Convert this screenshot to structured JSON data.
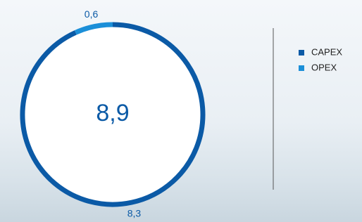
{
  "chart_data": {
    "type": "pie",
    "categories": [
      "CAPEX",
      "OPEX"
    ],
    "values": [
      8.3,
      0.6
    ],
    "value_labels": [
      "8,3",
      "0,6"
    ],
    "colors": [
      "#0b5aa6",
      "#1b8fd8"
    ],
    "total": {
      "value": 8.9,
      "label": "8,9"
    },
    "legend": "right"
  }
}
